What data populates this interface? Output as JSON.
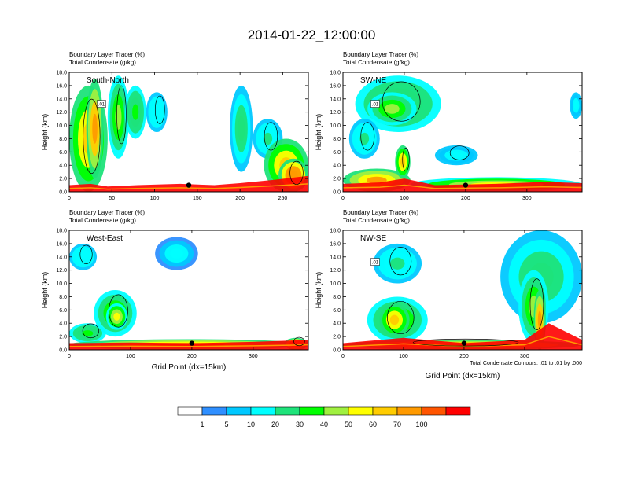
{
  "figure_title": "2014-01-22_12:00:00",
  "footnote": "Total Condensate Contours: .01 to .01 by .000",
  "chart_data": [
    {
      "type": "heatmap",
      "panel": "South-North",
      "title_line1": "Boundary Layer Tracer   (%)",
      "title_line2": "Total Condensate   (g/kg)",
      "label": "South-North",
      "ylabel": "Height (km)",
      "xlabel": "",
      "xlim": [
        0,
        280
      ],
      "ylim": [
        0,
        18
      ],
      "xticks": [
        0,
        50,
        100,
        150,
        200,
        250
      ],
      "yticks": [
        "0.0",
        "2.0",
        "4.0",
        "6.0",
        "8.0",
        "10.0",
        "12.0",
        "14.0",
        "16.0",
        "18.0"
      ],
      "contour_label": ".01",
      "marker": {
        "x": 140,
        "y": 1.0
      },
      "pbl": [
        [
          0,
          1.0
        ],
        [
          25,
          1.2
        ],
        [
          45,
          0.8
        ],
        [
          80,
          1.0
        ],
        [
          130,
          1.2
        ],
        [
          170,
          1.0
        ],
        [
          200,
          1.3
        ],
        [
          240,
          1.8
        ],
        [
          280,
          2.4
        ]
      ],
      "blobs": [
        {
          "x": [
            0,
            45
          ],
          "y": [
            0,
            16
          ],
          "v": 60
        },
        {
          "x": [
            20,
            40
          ],
          "y": [
            2,
            17
          ],
          "v": 75
        },
        {
          "x": [
            45,
            70
          ],
          "y": [
            5,
            17.5
          ],
          "v": 45
        },
        {
          "x": [
            65,
            90
          ],
          "y": [
            8,
            16
          ],
          "v": 35
        },
        {
          "x": [
            90,
            115
          ],
          "y": [
            9,
            15
          ],
          "v": 18
        },
        {
          "x": [
            188,
            215
          ],
          "y": [
            3,
            16
          ],
          "v": 25
        },
        {
          "x": [
            215,
            250
          ],
          "y": [
            5,
            11
          ],
          "v": 22
        },
        {
          "x": [
            228,
            280
          ],
          "y": [
            0,
            8
          ],
          "v": 65
        },
        {
          "x": [
            245,
            280
          ],
          "y": [
            0,
            5
          ],
          "v": 85
        }
      ]
    },
    {
      "type": "heatmap",
      "panel": "SW-NE",
      "title_line1": "Boundary Layer Tracer   (%)",
      "title_line2": "Total Condensate   (g/kg)",
      "label": "SW-NE",
      "ylabel": "Height (km)",
      "xlabel": "",
      "xlim": [
        0,
        390
      ],
      "ylim": [
        0,
        18
      ],
      "xticks": [
        0,
        100,
        200,
        300
      ],
      "yticks": [
        "0.0",
        "2.0",
        "4.0",
        "6.0",
        "8.0",
        "10.0",
        "12.0",
        "14.0",
        "16.0",
        "18.0"
      ],
      "contour_label": ".01",
      "marker": {
        "x": 200,
        "y": 1.0
      },
      "pbl": [
        [
          0,
          1.2
        ],
        [
          60,
          1.4
        ],
        [
          100,
          2.0
        ],
        [
          150,
          1.0
        ],
        [
          250,
          1.2
        ],
        [
          330,
          1.5
        ],
        [
          390,
          1.3
        ]
      ],
      "blobs": [
        {
          "x": [
            20,
            160
          ],
          "y": [
            9,
            17.5
          ],
          "v": 35
        },
        {
          "x": [
            40,
            120
          ],
          "y": [
            10,
            15
          ],
          "v": 45
        },
        {
          "x": [
            10,
            60
          ],
          "y": [
            5,
            11
          ],
          "v": 20
        },
        {
          "x": [
            0,
            110
          ],
          "y": [
            0,
            3.5
          ],
          "v": 70
        },
        {
          "x": [
            85,
            110
          ],
          "y": [
            2,
            7
          ],
          "v": 60
        },
        {
          "x": [
            110,
            390
          ],
          "y": [
            0,
            2.2
          ],
          "v": 55
        },
        {
          "x": [
            150,
            220
          ],
          "y": [
            4,
            7
          ],
          "v": 15
        },
        {
          "x": [
            370,
            390
          ],
          "y": [
            11,
            15
          ],
          "v": 15
        }
      ]
    },
    {
      "type": "heatmap",
      "panel": "West-East",
      "title_line1": "Boundary Layer Tracer   (%)",
      "title_line2": "Total Condensate   (g/kg)",
      "label": "West-East",
      "ylabel": "Height (km)",
      "xlabel": "Grid Point (dx=15km)",
      "xlim": [
        0,
        390
      ],
      "ylim": [
        0,
        18
      ],
      "xticks": [
        0,
        100,
        200,
        300
      ],
      "yticks": [
        "0.0",
        "2.0",
        "4.0",
        "6.0",
        "8.0",
        "10.0",
        "12.0",
        "14.0",
        "16.0",
        "18.0"
      ],
      "contour_label": "",
      "marker": {
        "x": 200,
        "y": 1.0
      },
      "pbl": [
        [
          0,
          1.0
        ],
        [
          100,
          1.1
        ],
        [
          200,
          1.0
        ],
        [
          300,
          1.2
        ],
        [
          390,
          1.5
        ]
      ],
      "blobs": [
        {
          "x": [
            40,
            110
          ],
          "y": [
            2,
            9
          ],
          "v": 40
        },
        {
          "x": [
            60,
            95
          ],
          "y": [
            3,
            7
          ],
          "v": 55
        },
        {
          "x": [
            0,
            45
          ],
          "y": [
            12,
            16
          ],
          "v": 18
        },
        {
          "x": [
            140,
            210
          ],
          "y": [
            12,
            17
          ],
          "v": 12
        },
        {
          "x": [
            0,
            60
          ],
          "y": [
            1,
            4
          ],
          "v": 35
        },
        {
          "x": [
            0,
            390
          ],
          "y": [
            0,
            1.6
          ],
          "v": 70
        },
        {
          "x": [
            350,
            390
          ],
          "y": [
            0,
            1.8
          ],
          "v": 85
        }
      ]
    },
    {
      "type": "heatmap",
      "panel": "NW-SE",
      "title_line1": "Boundary Layer Tracer   (%)",
      "title_line2": "Total Condensate   (g/kg)",
      "label": "NW-SE",
      "ylabel": "Height (km)",
      "xlabel": "Grid Point (dx=15km)",
      "xlim": [
        0,
        395
      ],
      "ylim": [
        0,
        18
      ],
      "xticks": [
        0,
        100,
        200,
        300
      ],
      "yticks": [
        "0.0",
        "2.0",
        "4.0",
        "6.0",
        "8.0",
        "10.0",
        "12.0",
        "14.0",
        "16.0",
        "18.0"
      ],
      "contour_label": ".01",
      "marker": {
        "x": 200,
        "y": 1.0
      },
      "pbl": [
        [
          0,
          1.0
        ],
        [
          100,
          1.8
        ],
        [
          200,
          1.0
        ],
        [
          300,
          1.5
        ],
        [
          340,
          4.0
        ],
        [
          395,
          1.5
        ]
      ],
      "blobs": [
        {
          "x": [
            40,
            140
          ],
          "y": [
            1,
            8
          ],
          "v": 45
        },
        {
          "x": [
            60,
            110
          ],
          "y": [
            2,
            7
          ],
          "v": 60
        },
        {
          "x": [
            50,
            130
          ],
          "y": [
            10,
            16
          ],
          "v": 20
        },
        {
          "x": [
            260,
            395
          ],
          "y": [
            4,
            18
          ],
          "v": 25
        },
        {
          "x": [
            290,
            340
          ],
          "y": [
            1,
            12
          ],
          "v": 45
        },
        {
          "x": [
            315,
            335
          ],
          "y": [
            0,
            9
          ],
          "v": 80
        },
        {
          "x": [
            0,
            395
          ],
          "y": [
            0,
            1.5
          ],
          "v": 75
        }
      ]
    }
  ],
  "colorbar": {
    "levels": [
      "1",
      "5",
      "10",
      "20",
      "30",
      "40",
      "50",
      "60",
      "70",
      "100"
    ],
    "colors": [
      "#ffffff",
      "#2f8fff",
      "#00c8ff",
      "#00ffff",
      "#1ee37a",
      "#00ff00",
      "#a0f040",
      "#ffff00",
      "#ffcc00",
      "#ff9a00",
      "#ff5500",
      "#ff0000"
    ]
  }
}
